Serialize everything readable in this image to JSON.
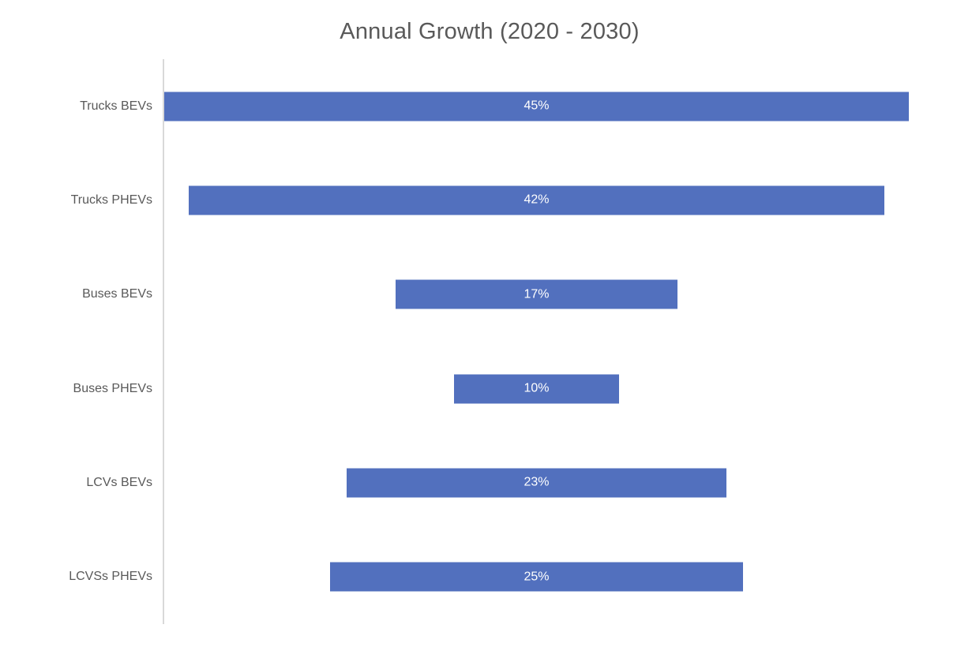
{
  "chart_data": {
    "type": "bar",
    "subtype": "funnel-centered-horizontal-bars",
    "title": "Annual Growth (2020 - 2030)",
    "categories": [
      "Trucks BEVs",
      "Trucks PHEVs",
      "Buses BEVs",
      "Buses PHEVs",
      "LCVs BEVs",
      "LCVSs PHEVs"
    ],
    "values": [
      45,
      42,
      17,
      10,
      23,
      25
    ],
    "value_labels": [
      "45%",
      "42%",
      "17%",
      "10%",
      "23%",
      "25%"
    ],
    "unit": "%",
    "max_value": 45,
    "xlabel": "",
    "ylabel": "",
    "legend": "none",
    "gridlines": "off",
    "axis_line": "vertical-left",
    "colors": {
      "bar": "#5270be",
      "title_text": "#595959",
      "category_text": "#595959",
      "value_text": "#ffffff",
      "axis_line": "#d9d9d9",
      "background": "#ffffff"
    }
  }
}
